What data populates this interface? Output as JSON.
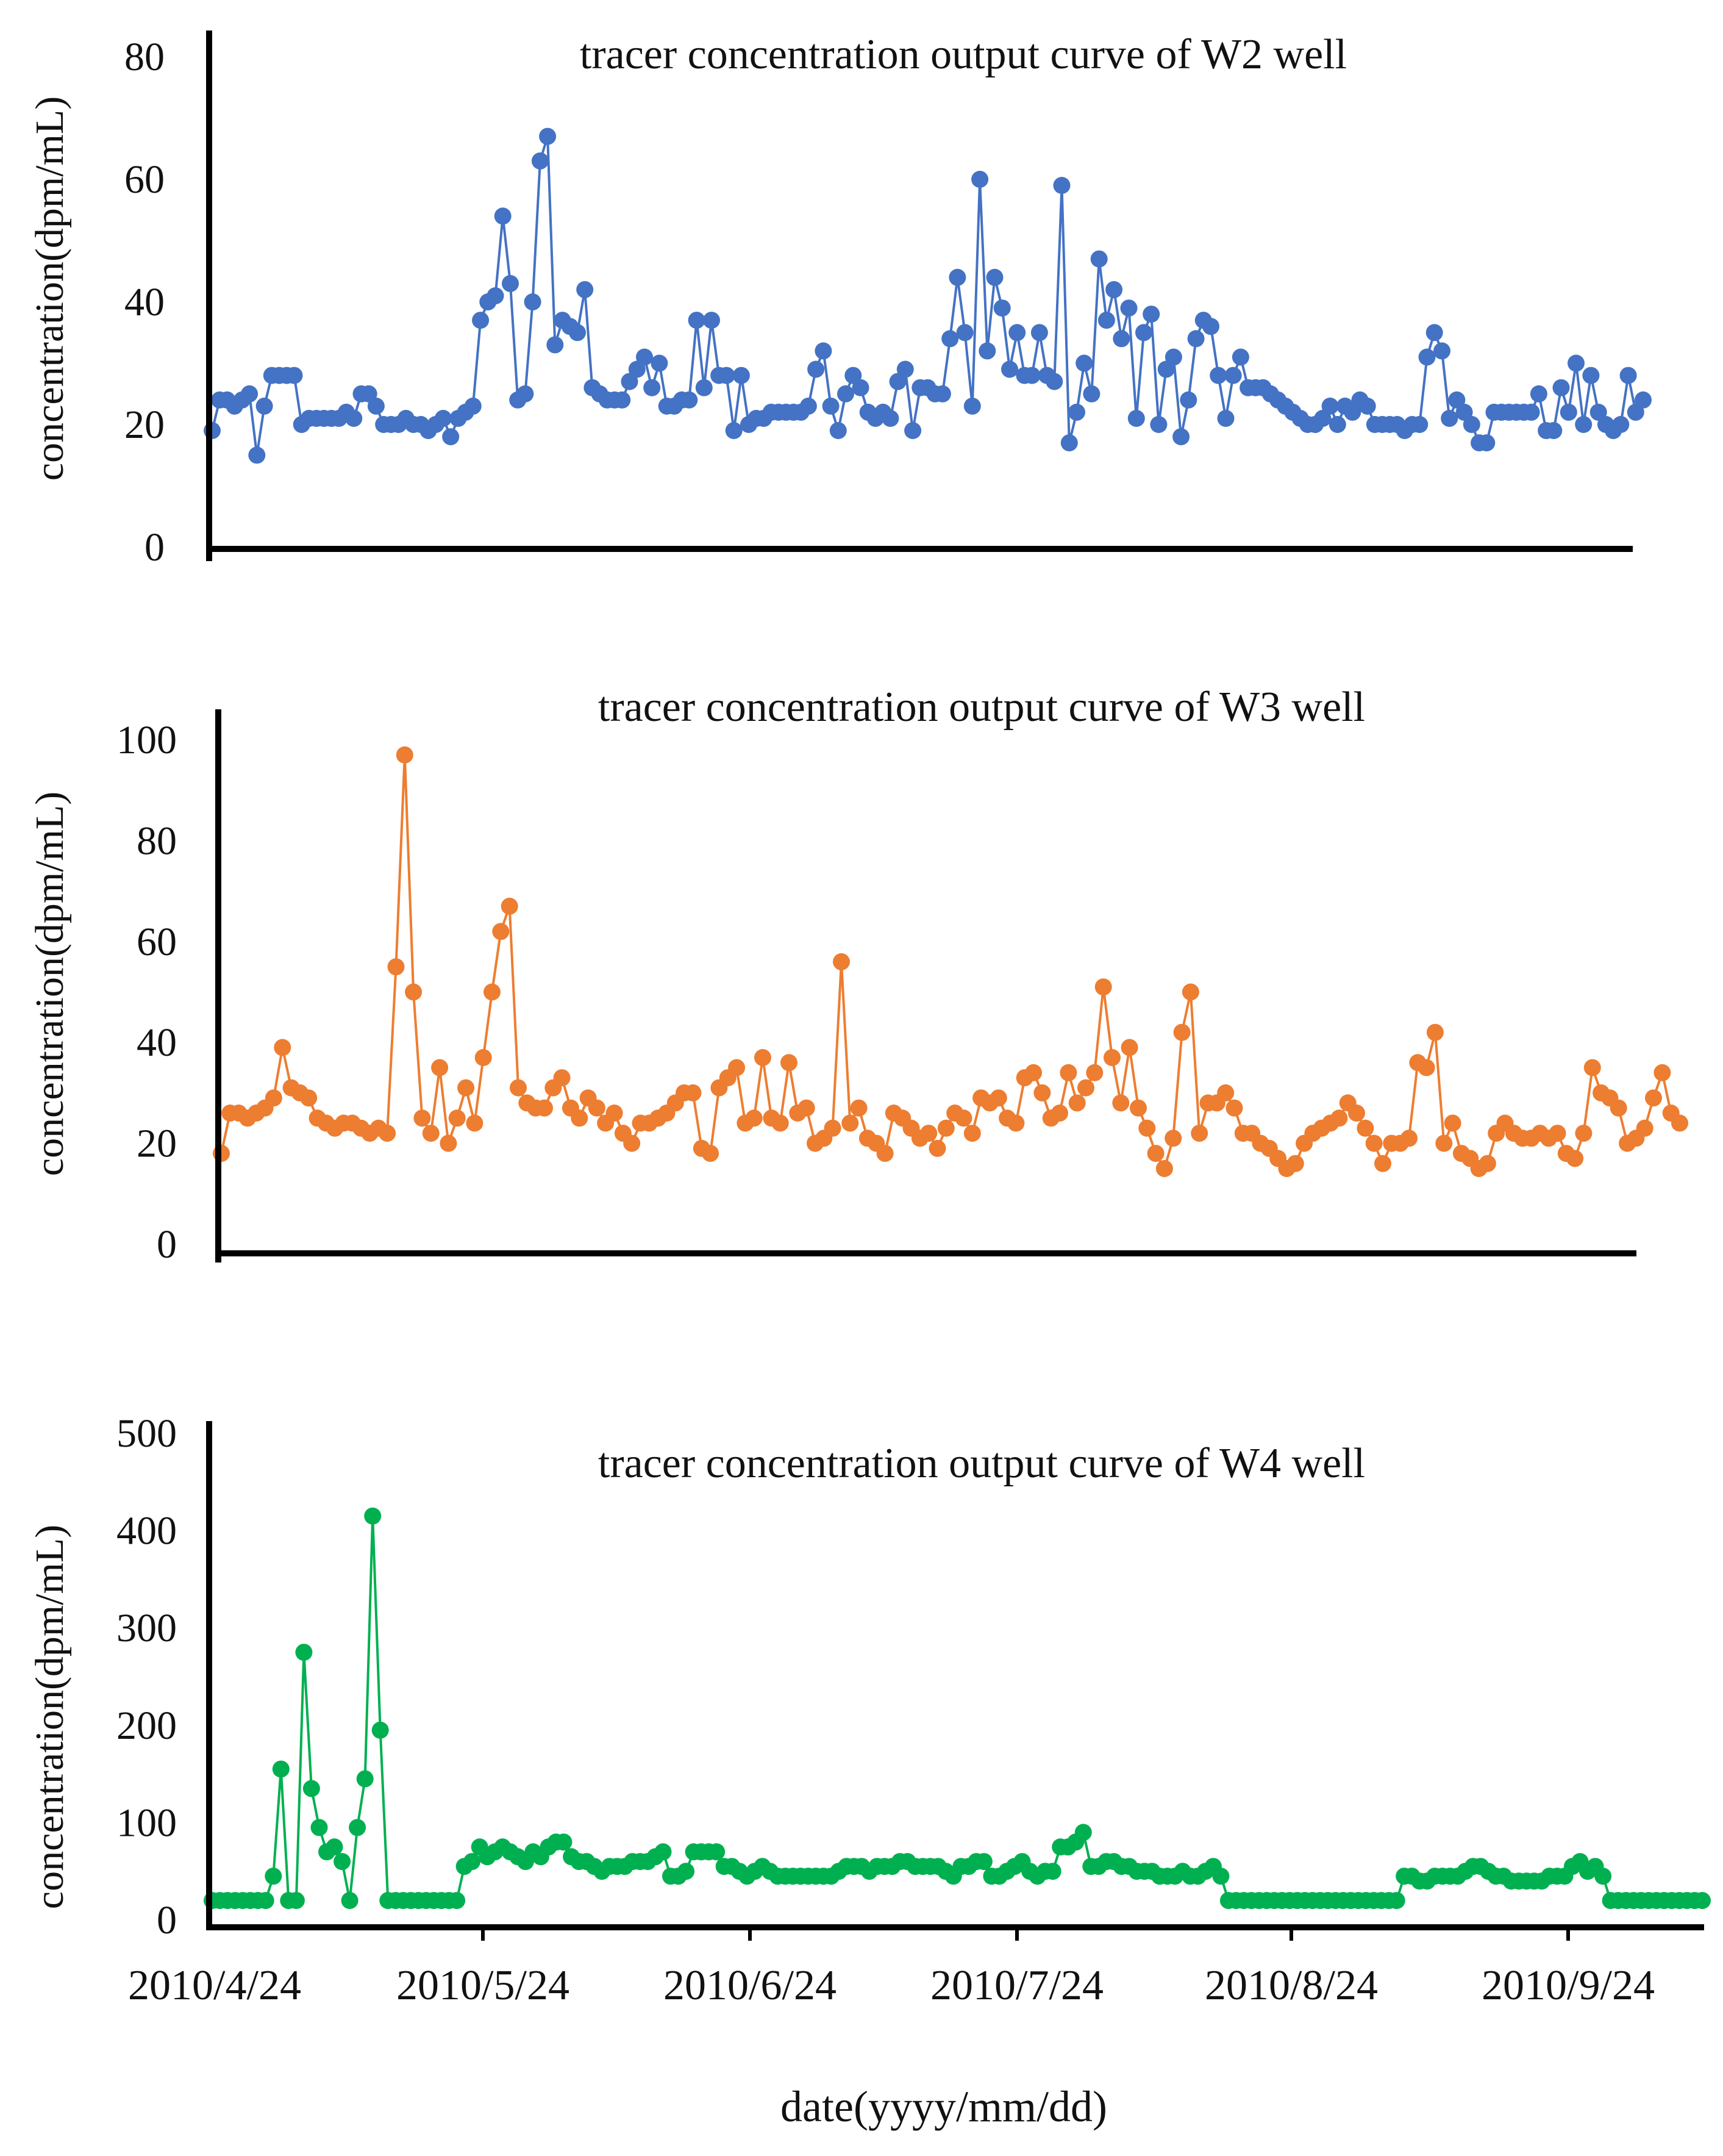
{
  "xlabel": "date(yyyy/mm/dd)",
  "x_tick_labels": [
    "2010/4/24",
    "2010/5/24",
    "2010/6/24",
    "2010/7/24",
    "2010/8/24",
    "2010/9/24"
  ],
  "chart_data": [
    {
      "type": "line",
      "title": "tracer concentration output curve of W2 well",
      "ylabel": "concentration(dpm/mL)",
      "ylim": [
        0,
        80
      ],
      "yticks": [
        0,
        20,
        40,
        60,
        80
      ],
      "color": "#4472C4",
      "series": [
        {
          "name": "W2",
          "values": [
            19,
            24,
            24,
            23,
            24,
            25,
            15,
            23,
            28,
            28,
            28,
            28,
            20,
            21,
            21,
            21,
            21,
            21,
            22,
            21,
            25,
            25,
            23,
            20,
            20,
            20,
            21,
            20,
            20,
            19,
            20,
            21,
            18,
            21,
            22,
            23,
            37,
            40,
            41,
            54,
            43,
            24,
            25,
            40,
            63,
            67,
            33,
            37,
            36,
            35,
            42,
            26,
            25,
            24,
            24,
            24,
            27,
            29,
            31,
            26,
            30,
            23,
            23,
            24,
            24,
            37,
            26,
            37,
            28,
            28,
            19,
            28,
            20,
            21,
            21,
            22,
            22,
            22,
            22,
            22,
            23,
            29,
            32,
            23,
            19,
            25,
            28,
            26,
            22,
            21,
            22,
            21,
            27,
            29,
            19,
            26,
            26,
            25,
            25,
            34,
            44,
            35,
            23,
            60,
            32,
            44,
            39,
            29,
            35,
            28,
            28,
            35,
            28,
            27,
            59,
            17,
            22,
            30,
            25,
            47,
            37,
            42,
            34,
            39,
            21,
            35,
            38,
            20,
            29,
            31,
            18,
            24,
            34,
            37,
            36,
            28,
            21,
            28,
            31,
            26,
            26,
            26,
            25,
            24,
            23,
            22,
            21,
            20,
            20,
            21,
            23,
            20,
            23,
            22,
            24,
            23,
            20,
            20,
            20,
            20,
            19,
            20,
            20,
            31,
            35,
            32,
            21,
            24,
            22,
            20,
            17,
            17,
            22,
            22,
            22,
            22,
            22,
            22,
            25,
            19,
            19,
            26,
            22,
            30,
            20,
            28,
            22,
            20,
            19,
            20,
            28,
            22,
            24
          ]
        }
      ]
    },
    {
      "type": "line",
      "title": "tracer concentration output curve of W3 well",
      "ylabel": "concentration(dpm/mL)",
      "ylim": [
        0,
        100
      ],
      "yticks": [
        0,
        20,
        40,
        60,
        80,
        100
      ],
      "color": "#ED7D31",
      "series": [
        {
          "name": "W3",
          "values": [
            18,
            26,
            26,
            25,
            26,
            27,
            29,
            39,
            31,
            30,
            29,
            25,
            24,
            23,
            24,
            24,
            23,
            22,
            23,
            22,
            55,
            97,
            50,
            25,
            22,
            35,
            20,
            25,
            31,
            24,
            37,
            50,
            62,
            67,
            31,
            28,
            27,
            27,
            31,
            33,
            27,
            25,
            29,
            27,
            24,
            26,
            22,
            20,
            24,
            24,
            25,
            26,
            28,
            30,
            30,
            19,
            18,
            31,
            33,
            35,
            24,
            25,
            37,
            25,
            24,
            36,
            26,
            27,
            20,
            21,
            23,
            56,
            24,
            27,
            21,
            20,
            18,
            26,
            25,
            23,
            21,
            22,
            19,
            23,
            26,
            25,
            22,
            29,
            28,
            29,
            25,
            24,
            33,
            34,
            30,
            25,
            26,
            34,
            28,
            31,
            34,
            51,
            37,
            28,
            39,
            27,
            23,
            18,
            15,
            21,
            42,
            50,
            22,
            28,
            28,
            30,
            27,
            22,
            22,
            20,
            19,
            17,
            15,
            16,
            20,
            22,
            23,
            24,
            25,
            28,
            26,
            23,
            20,
            16,
            20,
            20,
            21,
            36,
            35,
            42,
            20,
            24,
            18,
            17,
            15,
            16,
            22,
            24,
            22,
            21,
            21,
            22,
            21,
            22,
            18,
            17,
            22,
            35,
            30,
            29,
            27,
            20,
            21,
            23,
            29,
            34,
            26,
            24
          ]
        }
      ]
    },
    {
      "type": "line",
      "title": "tracer concentration output curve of W4 well",
      "ylabel": "concentration(dpm/mL)",
      "ylim": [
        0,
        500
      ],
      "yticks": [
        0,
        100,
        200,
        300,
        400,
        500
      ],
      "color": "#00B050",
      "series": [
        {
          "name": "W4",
          "values": [
            20,
            20,
            20,
            20,
            20,
            20,
            20,
            20,
            45,
            155,
            20,
            20,
            275,
            135,
            95,
            70,
            75,
            60,
            20,
            95,
            145,
            415,
            195,
            20,
            20,
            20,
            20,
            20,
            20,
            20,
            20,
            20,
            20,
            55,
            60,
            75,
            65,
            70,
            75,
            70,
            65,
            60,
            70,
            65,
            75,
            80,
            80,
            65,
            60,
            60,
            55,
            50,
            55,
            55,
            55,
            60,
            60,
            60,
            65,
            70,
            45,
            45,
            50,
            70,
            70,
            70,
            70,
            55,
            55,
            50,
            45,
            50,
            55,
            50,
            45,
            45,
            45,
            45,
            45,
            45,
            45,
            45,
            50,
            55,
            55,
            55,
            50,
            55,
            55,
            55,
            60,
            60,
            55,
            55,
            55,
            55,
            50,
            45,
            55,
            55,
            60,
            60,
            45,
            45,
            50,
            55,
            60,
            50,
            45,
            50,
            50,
            75,
            75,
            80,
            90,
            55,
            55,
            60,
            60,
            55,
            55,
            50,
            50,
            50,
            45,
            45,
            45,
            50,
            45,
            45,
            50,
            55,
            45,
            20,
            20,
            20,
            20,
            20,
            20,
            20,
            20,
            20,
            20,
            20,
            20,
            20,
            20,
            20,
            20,
            20,
            20,
            20,
            20,
            20,
            20,
            20,
            45,
            45,
            40,
            40,
            45,
            45,
            45,
            45,
            50,
            55,
            55,
            50,
            45,
            45,
            40,
            40,
            40,
            40,
            40,
            45,
            45,
            45,
            55,
            60,
            50,
            55,
            45,
            20,
            20,
            20,
            20,
            20,
            20,
            20,
            20,
            20,
            20,
            20,
            20,
            20
          ]
        }
      ]
    }
  ]
}
